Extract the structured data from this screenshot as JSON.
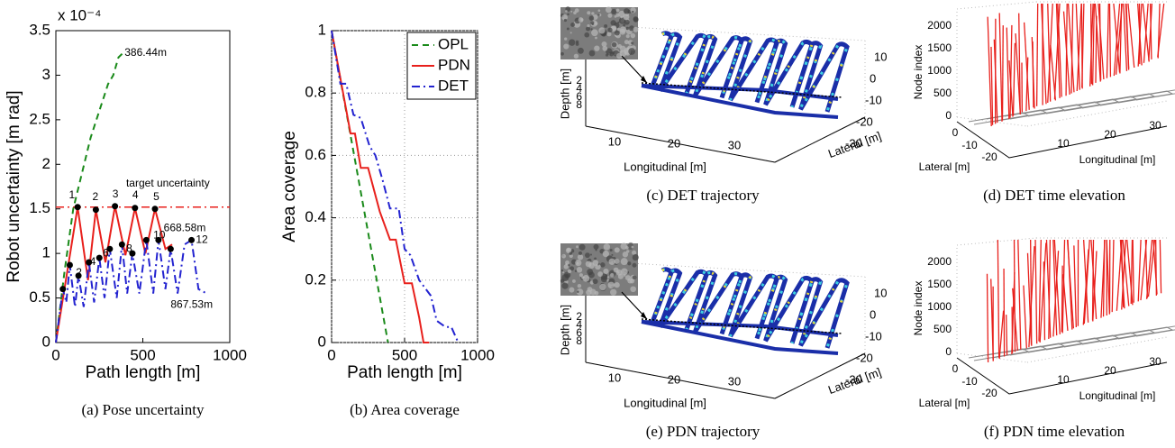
{
  "chart_data": [
    {
      "type": "line",
      "caption": "(a) Pose uncertainty",
      "xlabel": "Path length [m]",
      "ylabel": "Robot uncertainty [m rad]",
      "y_multiplier": "x 10⁻⁴",
      "xlim": [
        0,
        1000
      ],
      "xticks": [
        0,
        500,
        1000
      ],
      "ylim": [
        0,
        3.5
      ],
      "yticks": [
        0,
        0.5,
        1,
        1.5,
        2,
        2.5,
        3,
        3.5
      ],
      "grid": false,
      "reference_line": {
        "value": 1.52,
        "color": "#e8201c"
      },
      "series": [
        {
          "color": "#1a8a1a",
          "dash": "dashed",
          "x": [
            0,
            50,
            100,
            150,
            200,
            250,
            300,
            330,
            360,
            386.44
          ],
          "values": [
            0,
            0.8,
            1.5,
            1.9,
            2.3,
            2.6,
            2.9,
            3.0,
            3.2,
            3.25
          ]
        },
        {
          "color": "#e8201c",
          "dash": "solid",
          "x": [
            0,
            125,
            185,
            230,
            285,
            340,
            400,
            455,
            515,
            570,
            630,
            668.58
          ],
          "values": [
            0,
            1.52,
            0.7,
            1.49,
            0.9,
            1.53,
            0.98,
            1.51,
            1.0,
            1.5,
            1.05,
            1.1
          ]
        },
        {
          "color": "#2323d0",
          "dash": "dashdot",
          "x": [
            0,
            40,
            60,
            80,
            110,
            130,
            160,
            190,
            220,
            250,
            280,
            310,
            350,
            380,
            410,
            440,
            480,
            520,
            560,
            590,
            630,
            660,
            700,
            740,
            780,
            820,
            867.53
          ],
          "values": [
            0,
            0.6,
            0.45,
            0.87,
            0.4,
            0.75,
            0.4,
            0.9,
            0.45,
            0.95,
            0.5,
            1.05,
            0.5,
            1.1,
            0.55,
            1.0,
            0.55,
            1.15,
            0.55,
            1.15,
            0.6,
            1.05,
            0.55,
            1.1,
            1.15,
            0.6,
            0.55
          ]
        }
      ],
      "annotations": [
        {
          "text": "386.44m",
          "x": 395,
          "y": 3.25,
          "color": "#1a8a1a"
        },
        {
          "text": "target uncertainty",
          "x": 404,
          "y": 1.78,
          "color": "#e8201c"
        },
        {
          "text": "1",
          "x": 75,
          "y": 1.65,
          "color": "#e8201c"
        },
        {
          "text": "2",
          "x": 210,
          "y": 1.63,
          "color": "#e8201c"
        },
        {
          "text": "3",
          "x": 325,
          "y": 1.66,
          "color": "#e8201c"
        },
        {
          "text": "4",
          "x": 440,
          "y": 1.65,
          "color": "#e8201c"
        },
        {
          "text": "5",
          "x": 560,
          "y": 1.63,
          "color": "#e8201c"
        },
        {
          "text": "668.58m",
          "x": 620,
          "y": 1.28,
          "color": "#e8201c"
        },
        {
          "text": "2",
          "x": 115,
          "y": 0.78,
          "color": "#2323d0"
        },
        {
          "text": "4",
          "x": 195,
          "y": 0.9,
          "color": "#2323d0"
        },
        {
          "text": "6",
          "x": 270,
          "y": 1.0,
          "color": "#2323d0"
        },
        {
          "text": "8",
          "x": 405,
          "y": 1.05,
          "color": "#2323d0"
        },
        {
          "text": "10",
          "x": 560,
          "y": 1.2,
          "color": "#2323d0"
        },
        {
          "text": "12",
          "x": 805,
          "y": 1.15,
          "color": "#2323d0"
        },
        {
          "text": "867.53m",
          "x": 660,
          "y": 0.42,
          "color": "#2323d0"
        }
      ]
    },
    {
      "type": "line",
      "caption": "(b) Area coverage",
      "xlabel": "Path length [m]",
      "ylabel": "Area coverage",
      "xlim": [
        0,
        1000
      ],
      "xticks": [
        0,
        500,
        1000
      ],
      "ylim": [
        0,
        1
      ],
      "yticks": [
        0,
        0.2,
        0.4,
        0.6,
        0.8,
        1
      ],
      "grid": true,
      "legend": "upper right",
      "series": [
        {
          "name": "OPL",
          "color": "#1a8a1a",
          "dash": "dashed",
          "x": [
            0,
            386.44
          ],
          "values": [
            1,
            0
          ]
        },
        {
          "name": "PDN",
          "color": "#e8201c",
          "dash": "solid",
          "x": [
            0,
            130,
            160,
            200,
            250,
            330,
            400,
            440,
            500,
            550,
            600,
            630,
            668.58
          ],
          "values": [
            1,
            0.67,
            0.67,
            0.56,
            0.56,
            0.42,
            0.33,
            0.33,
            0.19,
            0.19,
            0.08,
            0,
            0
          ]
        },
        {
          "name": "DET",
          "color": "#2323d0",
          "dash": "dashdot",
          "x": [
            0,
            60,
            100,
            150,
            200,
            260,
            300,
            350,
            400,
            460,
            500,
            540,
            600,
            680,
            720,
            780,
            820,
            867.53
          ],
          "values": [
            1,
            0.83,
            0.83,
            0.73,
            0.72,
            0.63,
            0.6,
            0.52,
            0.43,
            0.43,
            0.3,
            0.28,
            0.2,
            0.15,
            0.07,
            0.05,
            0.05,
            0
          ]
        }
      ]
    },
    {
      "type": "3d-trajectory",
      "caption": "(c) DET trajectory",
      "xlabel": "Longitudinal [m]",
      "ylabel": "Lateral [m]",
      "zlabel": "Depth [m]",
      "xticks": [
        10,
        20,
        30
      ],
      "yticks": [
        10,
        0,
        -10,
        -20,
        -30
      ],
      "zticks": [
        2,
        4,
        6,
        8
      ]
    },
    {
      "type": "3d-elevation",
      "caption": "(d) DET time elevation",
      "xlabel": "Lateral [m]",
      "ylabel": "Longitudinal [m]",
      "zlabel": "Node index",
      "xticks": [
        0,
        -10,
        -20
      ],
      "yticks": [
        10,
        20,
        30
      ],
      "zticks": [
        0,
        500,
        1000,
        1500,
        2000
      ]
    },
    {
      "type": "3d-trajectory",
      "caption": "(e) PDN trajectory",
      "xlabel": "Longitudinal [m]",
      "ylabel": "Lateral [m]",
      "zlabel": "Depth [m]",
      "xticks": [
        10,
        20,
        30
      ],
      "yticks": [
        10,
        0,
        -10,
        -20,
        -30
      ],
      "zticks": [
        2,
        4,
        6,
        8
      ]
    },
    {
      "type": "3d-elevation",
      "caption": "(f) PDN time elevation",
      "xlabel": "Lateral [m]",
      "ylabel": "Longitudinal [m]",
      "zlabel": "Node index",
      "xticks": [
        0,
        -10,
        -20
      ],
      "yticks": [
        10,
        20,
        30
      ],
      "zticks": [
        0,
        500,
        1000,
        1500,
        2000
      ]
    }
  ]
}
